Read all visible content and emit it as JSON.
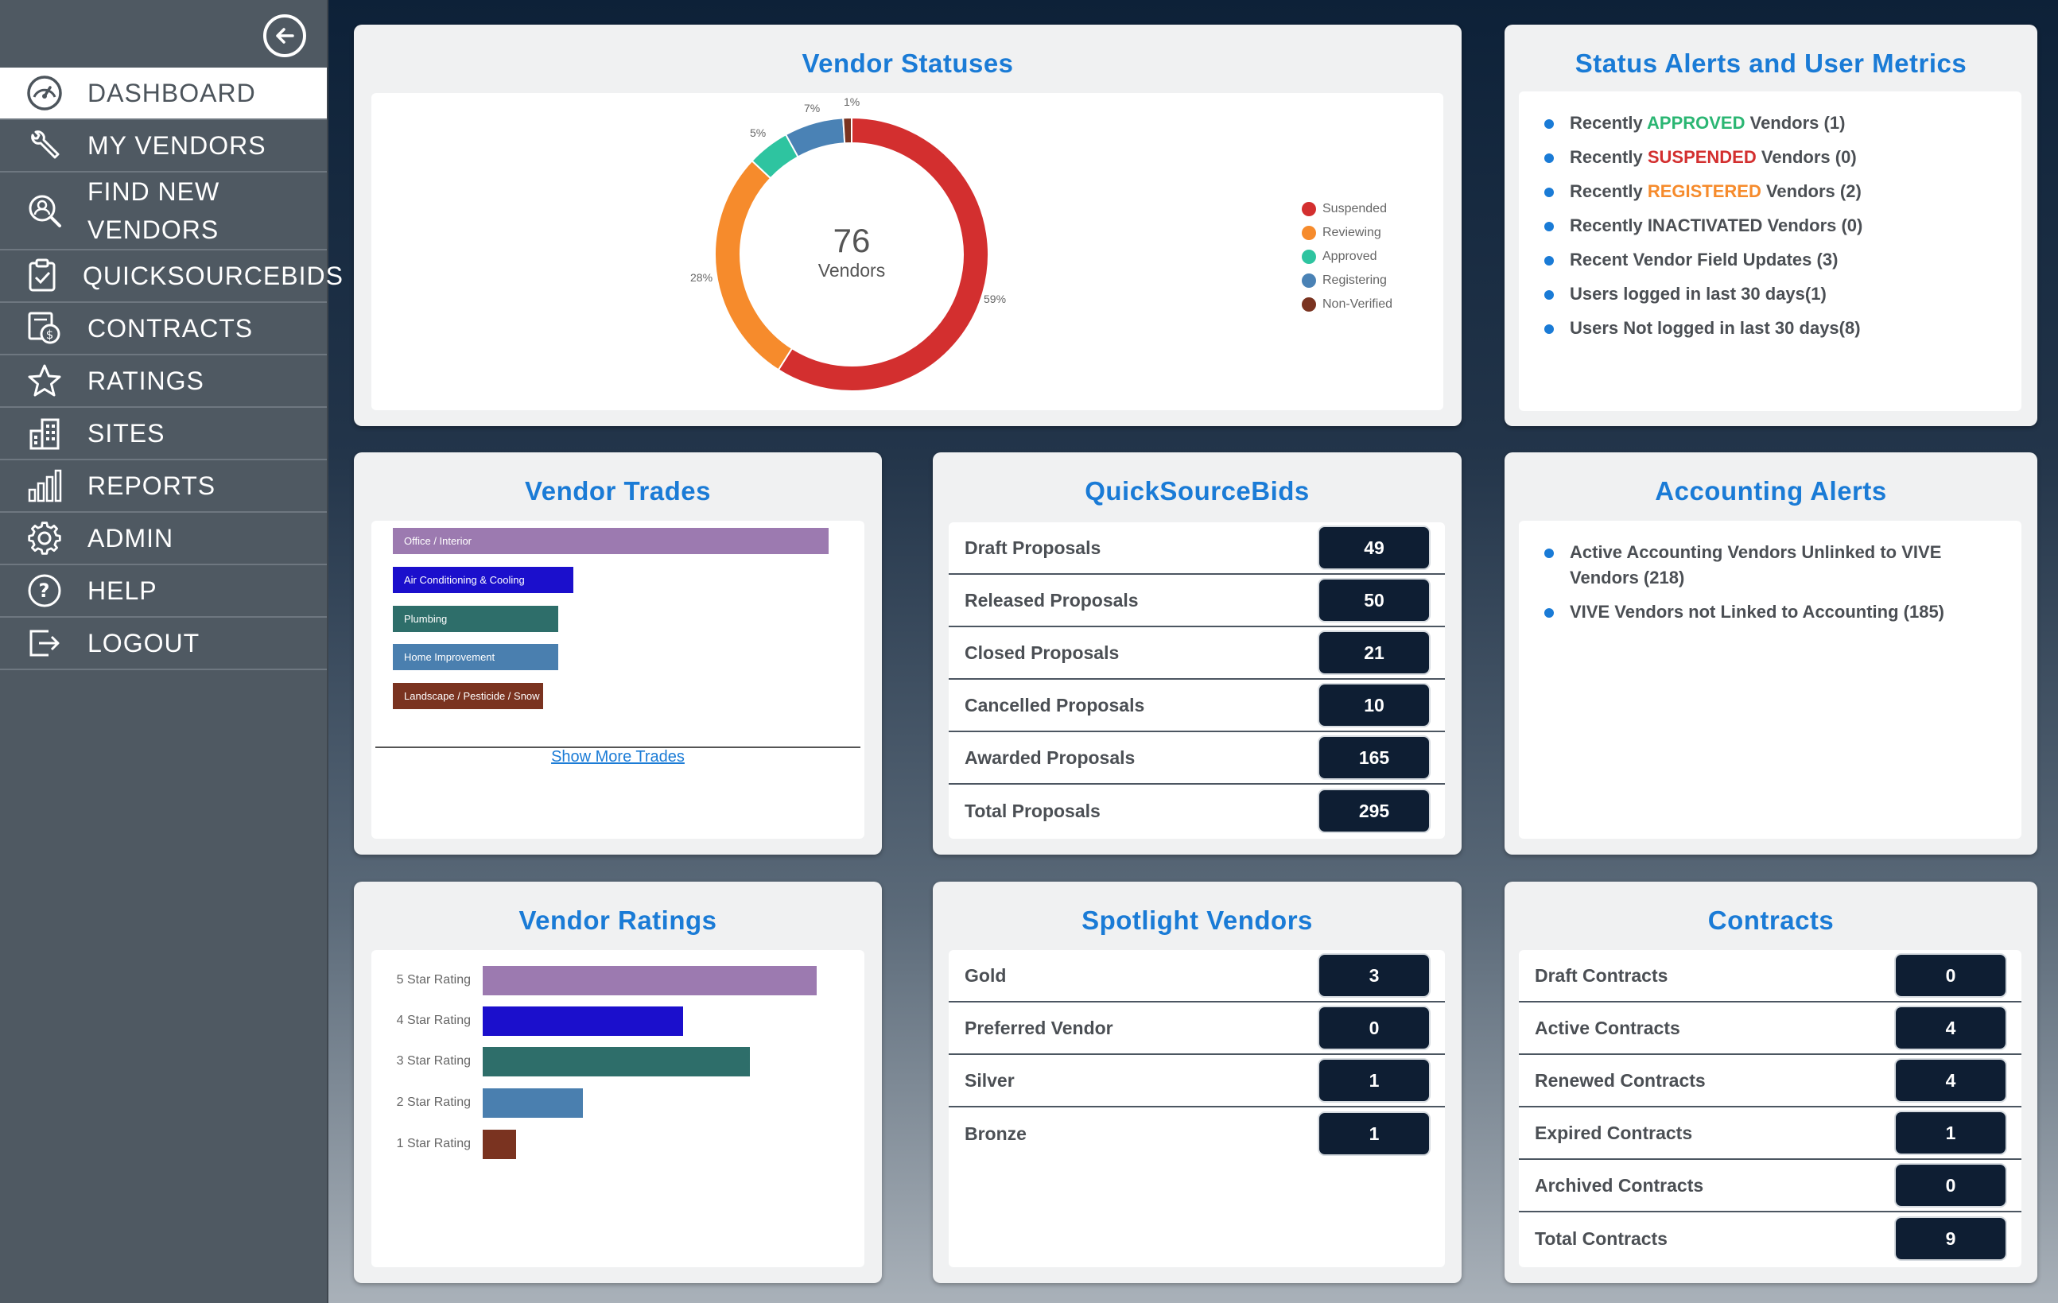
{
  "sidebar": {
    "items": [
      {
        "label": "DASHBOARD",
        "icon": "dashboard-gauge-icon"
      },
      {
        "label": "MY VENDORS",
        "icon": "wrench-icon"
      },
      {
        "label": "FIND NEW VENDORS",
        "icon": "search-user-icon"
      },
      {
        "label": "QUICKSOURCEBIDS",
        "icon": "clipboard-check-icon"
      },
      {
        "label": "CONTRACTS",
        "icon": "money-document-icon"
      },
      {
        "label": "RATINGS",
        "icon": "star-icon"
      },
      {
        "label": "SITES",
        "icon": "buildings-icon"
      },
      {
        "label": "REPORTS",
        "icon": "bar-chart-icon"
      },
      {
        "label": "ADMIN",
        "icon": "gear-icon"
      },
      {
        "label": "HELP",
        "icon": "help-icon"
      },
      {
        "label": "LOGOUT",
        "icon": "logout-icon"
      }
    ]
  },
  "vendor_statuses": {
    "title": "Vendor Statuses",
    "total": "76",
    "total_label": "Vendors",
    "legend": [
      "Suspended",
      "Reviewing",
      "Approved",
      "Registering",
      "Non-Verified"
    ],
    "colors": {
      "suspended": "#d32f2f",
      "reviewing": "#f68b2c",
      "approved": "#2ec4a0",
      "registering": "#4a82b5",
      "nonverified": "#7a3320"
    }
  },
  "chart_data": {
    "type": "pie",
    "categories": [
      "Suspended",
      "Reviewing",
      "Approved",
      "Registering",
      "Non-Verified"
    ],
    "values": [
      59,
      28,
      5,
      7,
      1
    ],
    "labels": [
      "59%",
      "28%",
      "5%",
      "7%",
      "1%"
    ]
  },
  "status_alerts": {
    "title": "Status Alerts and User Metrics",
    "items": [
      {
        "pre": "Recently ",
        "hl": "APPROVED",
        "post": " Vendors (1)",
        "color": "#2bb673"
      },
      {
        "pre": "Recently ",
        "hl": "SUSPENDED",
        "post": " Vendors (0)",
        "color": "#d32f2f"
      },
      {
        "pre": "Recently ",
        "hl": "REGISTERED",
        "post": " Vendors (2)",
        "color": "#f68b2c"
      },
      {
        "pre": "Recently INACTIVATED Vendors (0)",
        "hl": "",
        "post": "",
        "color": ""
      },
      {
        "pre": "Recent Vendor Field Updates (3)",
        "hl": "",
        "post": "",
        "color": ""
      },
      {
        "pre": "Users logged in last 30 days(1)",
        "hl": "",
        "post": "",
        "color": ""
      },
      {
        "pre": "Users Not logged in last 30 days(8)",
        "hl": "",
        "post": "",
        "color": ""
      }
    ]
  },
  "vendor_trades": {
    "title": "Vendor Trades",
    "items": [
      {
        "label": "Office / Interior",
        "color": "#9c7ab0"
      },
      {
        "label": "Air Conditioning & Cooling",
        "color": "#1b0fcc"
      },
      {
        "label": "Plumbing",
        "color": "#2e6e6a"
      },
      {
        "label": "Home Improvement",
        "color": "#4a7faf"
      },
      {
        "label": "Landscape / Pesticide / Snow",
        "color": "#7a3320"
      }
    ],
    "show_more": "Show More Trades"
  },
  "quicksourcebids": {
    "title": "QuickSourceBids",
    "rows": [
      {
        "label": "Draft Proposals",
        "value": "49"
      },
      {
        "label": "Released Proposals",
        "value": "50"
      },
      {
        "label": "Closed Proposals",
        "value": "21"
      },
      {
        "label": "Cancelled Proposals",
        "value": "10"
      },
      {
        "label": "Awarded Proposals",
        "value": "165"
      },
      {
        "label": "Total Proposals",
        "value": "295"
      }
    ]
  },
  "accounting_alerts": {
    "title": "Accounting Alerts",
    "items": [
      "Active Accounting Vendors Unlinked to VIVE Vendors (218)",
      "VIVE Vendors not Linked to Accounting (185)"
    ]
  },
  "vendor_ratings": {
    "title": "Vendor Ratings",
    "items": [
      {
        "label": "5 Star Rating",
        "color": "#9c7ab0"
      },
      {
        "label": "4 Star Rating",
        "color": "#1b0fcc"
      },
      {
        "label": "3 Star Rating",
        "color": "#2e6e6a"
      },
      {
        "label": "2 Star Rating",
        "color": "#4a7faf"
      },
      {
        "label": "1 Star Rating",
        "color": "#7a3320"
      }
    ]
  },
  "spotlight_vendors": {
    "title": "Spotlight Vendors",
    "rows": [
      {
        "label": "Gold",
        "value": "3"
      },
      {
        "label": "Preferred Vendor",
        "value": "0"
      },
      {
        "label": "Silver",
        "value": "1"
      },
      {
        "label": "Bronze",
        "value": "1"
      }
    ]
  },
  "contracts": {
    "title": "Contracts",
    "rows": [
      {
        "label": "Draft Contracts",
        "value": "0"
      },
      {
        "label": "Active Contracts",
        "value": "4"
      },
      {
        "label": "Renewed Contracts",
        "value": "4"
      },
      {
        "label": "Expired Contracts",
        "value": "1"
      },
      {
        "label": "Archived Contracts",
        "value": "0"
      },
      {
        "label": "Total Contracts",
        "value": "9"
      }
    ]
  }
}
